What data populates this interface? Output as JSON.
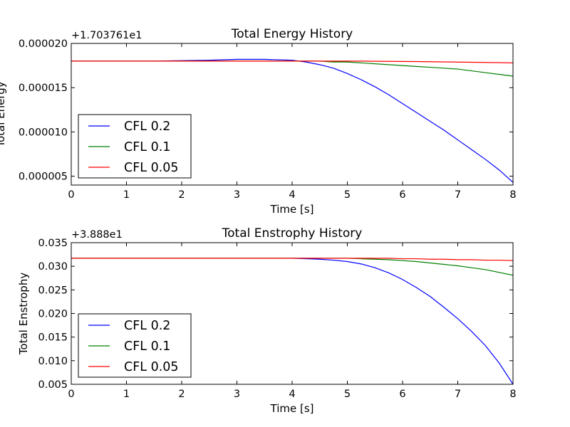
{
  "chart_data": [
    {
      "type": "line",
      "title": "Total Energy History",
      "xlabel": "Time [s]",
      "ylabel": "Total Energy",
      "offset_label": "+1.703761e1",
      "xlim": [
        0,
        8
      ],
      "ylim": [
        4e-06,
        2e-05
      ],
      "x_ticks": [
        0,
        1,
        2,
        3,
        4,
        5,
        6,
        7,
        8
      ],
      "x_tick_labels": [
        "0",
        "1",
        "2",
        "3",
        "4",
        "5",
        "6",
        "7",
        "8"
      ],
      "y_ticks": [
        5e-06,
        1e-05,
        1.5e-05,
        2e-05
      ],
      "y_tick_labels": [
        "0.000005",
        "0.000010",
        "0.000015",
        "0.000020"
      ],
      "legend_position": "lower-left",
      "x": [
        0,
        0.5,
        1,
        1.5,
        2,
        2.5,
        3,
        3.5,
        4,
        4.25,
        4.5,
        4.75,
        5,
        5.25,
        5.5,
        5.75,
        6,
        6.25,
        6.5,
        6.75,
        7,
        7.25,
        7.5,
        7.75,
        8
      ],
      "series": [
        {
          "name": "CFL 0.2",
          "color": "#0000ff",
          "values": [
            1.8e-05,
            1.8e-05,
            1.8e-05,
            1.8e-05,
            1.805e-05,
            1.81e-05,
            1.82e-05,
            1.82e-05,
            1.81e-05,
            1.79e-05,
            1.76e-05,
            1.72e-05,
            1.66e-05,
            1.59e-05,
            1.51e-05,
            1.42e-05,
            1.32e-05,
            1.22e-05,
            1.12e-05,
            1.02e-05,
            9.1e-06,
            8e-06,
            6.9e-06,
            5.7e-06,
            4.3e-06
          ]
        },
        {
          "name": "CFL 0.1",
          "color": "#008000",
          "values": [
            1.8e-05,
            1.8e-05,
            1.8e-05,
            1.8e-05,
            1.8e-05,
            1.8e-05,
            1.8e-05,
            1.8e-05,
            1.8e-05,
            1.8e-05,
            1.8e-05,
            1.79e-05,
            1.79e-05,
            1.78e-05,
            1.77e-05,
            1.76e-05,
            1.75e-05,
            1.74e-05,
            1.73e-05,
            1.72e-05,
            1.71e-05,
            1.69e-05,
            1.67e-05,
            1.65e-05,
            1.63e-05
          ]
        },
        {
          "name": "CFL 0.05",
          "color": "#ff0000",
          "values": [
            1.8e-05,
            1.8e-05,
            1.8e-05,
            1.8e-05,
            1.8e-05,
            1.8e-05,
            1.8e-05,
            1.8e-05,
            1.8e-05,
            1.8e-05,
            1.8e-05,
            1.8e-05,
            1.8e-05,
            1.8e-05,
            1.798e-05,
            1.797e-05,
            1.796e-05,
            1.795e-05,
            1.793e-05,
            1.791e-05,
            1.789e-05,
            1.787e-05,
            1.785e-05,
            1.783e-05,
            1.78e-05
          ]
        }
      ]
    },
    {
      "type": "line",
      "title": "Total Enstrophy History",
      "xlabel": "Time [s]",
      "ylabel": "Total Enstrophy",
      "offset_label": "+3.888e1",
      "xlim": [
        0,
        8
      ],
      "ylim": [
        0.005,
        0.035
      ],
      "x_ticks": [
        0,
        1,
        2,
        3,
        4,
        5,
        6,
        7,
        8
      ],
      "x_tick_labels": [
        "0",
        "1",
        "2",
        "3",
        "4",
        "5",
        "6",
        "7",
        "8"
      ],
      "y_ticks": [
        0.005,
        0.01,
        0.015,
        0.02,
        0.025,
        0.03,
        0.035
      ],
      "y_tick_labels": [
        "0.005",
        "0.010",
        "0.015",
        "0.020",
        "0.025",
        "0.030",
        "0.035"
      ],
      "legend_position": "lower-left",
      "x": [
        0,
        0.5,
        1,
        1.5,
        2,
        2.5,
        3,
        3.5,
        4,
        4.25,
        4.5,
        4.75,
        5,
        5.25,
        5.5,
        5.75,
        6,
        6.25,
        6.5,
        6.75,
        7,
        7.25,
        7.5,
        7.75,
        8
      ],
      "series": [
        {
          "name": "CFL 0.2",
          "color": "#0000ff",
          "values": [
            0.0317,
            0.0317,
            0.0317,
            0.0317,
            0.0317,
            0.0317,
            0.0317,
            0.0317,
            0.0317,
            0.0316,
            0.0315,
            0.0313,
            0.031,
            0.0305,
            0.0297,
            0.0286,
            0.0272,
            0.0255,
            0.0236,
            0.0213,
            0.0189,
            0.0162,
            0.0132,
            0.0095,
            0.005
          ]
        },
        {
          "name": "CFL 0.1",
          "color": "#008000",
          "values": [
            0.0317,
            0.0317,
            0.0317,
            0.0317,
            0.0317,
            0.0317,
            0.0317,
            0.0317,
            0.0317,
            0.0317,
            0.0317,
            0.0317,
            0.0317,
            0.0316,
            0.0315,
            0.0314,
            0.0312,
            0.031,
            0.0307,
            0.0304,
            0.0301,
            0.0297,
            0.0293,
            0.0287,
            0.0281
          ]
        },
        {
          "name": "CFL 0.05",
          "color": "#ff0000",
          "values": [
            0.0317,
            0.0317,
            0.0317,
            0.0317,
            0.0317,
            0.0317,
            0.0317,
            0.0317,
            0.0317,
            0.0317,
            0.0317,
            0.0317,
            0.0317,
            0.0317,
            0.0317,
            0.0317,
            0.0316,
            0.0316,
            0.0315,
            0.0315,
            0.0314,
            0.0314,
            0.0313,
            0.0313,
            0.0312
          ]
        }
      ]
    }
  ]
}
